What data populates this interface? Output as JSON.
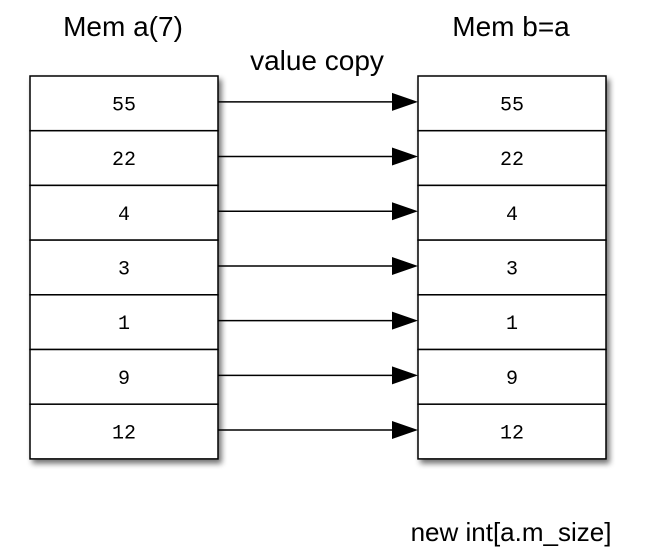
{
  "array_a": {
    "title": "Mem a(7)",
    "values": [
      "55",
      "22",
      "4",
      "3",
      "1",
      "9",
      "12"
    ]
  },
  "array_b": {
    "title": "Mem b=a",
    "values": [
      "55",
      "22",
      "4",
      "3",
      "1",
      "9",
      "12"
    ]
  },
  "copy_label": "value copy",
  "allocation_note": "new int[a.m_size]",
  "colors": {
    "cell_fill": "#ffffff",
    "cell_stroke": "#000000",
    "arrow": "#000000",
    "shadow": "#9a9a9a"
  }
}
